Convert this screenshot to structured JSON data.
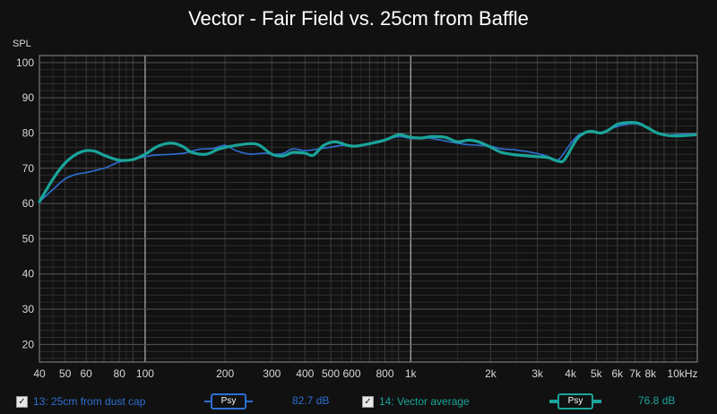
{
  "title": "Vector - Fair Field vs. 25cm from Baffle",
  "chart_data": {
    "type": "line",
    "title": "Vector - Fair Field vs. 25cm from Baffle",
    "ylabel": "SPL",
    "xlabel": "",
    "x_scale": "log",
    "xlim": [
      40,
      12000
    ],
    "ylim": [
      15,
      102
    ],
    "grid": true,
    "y_ticks": [
      "100",
      "90",
      "80",
      "70",
      "60",
      "50",
      "40",
      "30",
      "20"
    ],
    "y_tick_values": [
      100,
      90,
      80,
      70,
      60,
      50,
      40,
      30,
      20
    ],
    "x_ticks": [
      {
        "v": 40,
        "t": "40"
      },
      {
        "v": 50,
        "t": "50"
      },
      {
        "v": 60,
        "t": "60"
      },
      {
        "v": 80,
        "t": "80"
      },
      {
        "v": 100,
        "t": "100"
      },
      {
        "v": 200,
        "t": "200"
      },
      {
        "v": 300,
        "t": "300"
      },
      {
        "v": 400,
        "t": "400"
      },
      {
        "v": 500,
        "t": "500"
      },
      {
        "v": 600,
        "t": "600"
      },
      {
        "v": 800,
        "t": "800"
      },
      {
        "v": 1000,
        "t": "1k"
      },
      {
        "v": 2000,
        "t": "2k"
      },
      {
        "v": 3000,
        "t": "3k"
      },
      {
        "v": 4000,
        "t": "4k"
      },
      {
        "v": 5000,
        "t": "5k"
      },
      {
        "v": 6000,
        "t": "6k"
      },
      {
        "v": 7000,
        "t": "7k"
      },
      {
        "v": 8000,
        "t": "8k"
      },
      {
        "v": 10000,
        "t": "10kHz"
      }
    ],
    "series": [
      {
        "name": "13: 25cm from dust cap",
        "color": "#2d6fd2",
        "points": [
          [
            40,
            60.5
          ],
          [
            45,
            64
          ],
          [
            50,
            67
          ],
          [
            55,
            68.3
          ],
          [
            60,
            68.8
          ],
          [
            70,
            70
          ],
          [
            80,
            71.8
          ],
          [
            90,
            72.5
          ],
          [
            100,
            73.3
          ],
          [
            110,
            73.8
          ],
          [
            120,
            73.9
          ],
          [
            140,
            74.3
          ],
          [
            160,
            75.4
          ],
          [
            180,
            75.6
          ],
          [
            200,
            76.5
          ],
          [
            220,
            75
          ],
          [
            250,
            74
          ],
          [
            280,
            74.3
          ],
          [
            300,
            74
          ],
          [
            330,
            74.2
          ],
          [
            360,
            75.5
          ],
          [
            400,
            75
          ],
          [
            450,
            75.5
          ],
          [
            500,
            76
          ],
          [
            550,
            76.5
          ],
          [
            600,
            76.3
          ],
          [
            700,
            77
          ],
          [
            800,
            78
          ],
          [
            900,
            79
          ],
          [
            1000,
            78.5
          ],
          [
            1100,
            78.5
          ],
          [
            1200,
            78.5
          ],
          [
            1400,
            77.5
          ],
          [
            1600,
            76.8
          ],
          [
            1800,
            76.5
          ],
          [
            2000,
            76.3
          ],
          [
            2200,
            75.5
          ],
          [
            2500,
            75.2
          ],
          [
            3000,
            74.2
          ],
          [
            3300,
            73.3
          ],
          [
            3600,
            72.5
          ],
          [
            4000,
            77
          ],
          [
            4300,
            79.5
          ],
          [
            4700,
            80.5
          ],
          [
            5200,
            80.2
          ],
          [
            5800,
            81.5
          ],
          [
            6500,
            82.5
          ],
          [
            7200,
            82.5
          ],
          [
            8000,
            81
          ],
          [
            9000,
            79.5
          ],
          [
            10000,
            79.6
          ],
          [
            11800,
            79.8
          ]
        ]
      },
      {
        "name": "14: Vector average",
        "color": "#1aa49a",
        "points": [
          [
            40,
            60.5
          ],
          [
            45,
            67
          ],
          [
            50,
            71.5
          ],
          [
            55,
            74
          ],
          [
            60,
            75
          ],
          [
            65,
            74.8
          ],
          [
            70,
            73.7
          ],
          [
            80,
            72.3
          ],
          [
            90,
            72.5
          ],
          [
            100,
            74
          ],
          [
            110,
            76
          ],
          [
            120,
            77
          ],
          [
            130,
            77
          ],
          [
            140,
            76
          ],
          [
            150,
            74.5
          ],
          [
            170,
            74
          ],
          [
            190,
            75.5
          ],
          [
            220,
            76.5
          ],
          [
            250,
            77
          ],
          [
            270,
            76.5
          ],
          [
            300,
            74
          ],
          [
            330,
            73.5
          ],
          [
            360,
            74.5
          ],
          [
            400,
            74.3
          ],
          [
            430,
            73.7
          ],
          [
            470,
            76.5
          ],
          [
            520,
            77.5
          ],
          [
            580,
            76.5
          ],
          [
            620,
            76.3
          ],
          [
            700,
            77
          ],
          [
            800,
            78
          ],
          [
            900,
            79.5
          ],
          [
            1000,
            78.8
          ],
          [
            1100,
            78.6
          ],
          [
            1200,
            79
          ],
          [
            1350,
            78.8
          ],
          [
            1500,
            77.5
          ],
          [
            1650,
            78
          ],
          [
            1800,
            77.5
          ],
          [
            2000,
            76
          ],
          [
            2200,
            74.5
          ],
          [
            2500,
            73.8
          ],
          [
            3000,
            73.3
          ],
          [
            3300,
            73
          ],
          [
            3600,
            72
          ],
          [
            3800,
            72.5
          ],
          [
            4200,
            78
          ],
          [
            4500,
            80
          ],
          [
            4800,
            80.5
          ],
          [
            5200,
            80
          ],
          [
            5600,
            81
          ],
          [
            6000,
            82.5
          ],
          [
            6600,
            83
          ],
          [
            7200,
            82.8
          ],
          [
            7800,
            81.5
          ],
          [
            8500,
            80
          ],
          [
            9300,
            79.3
          ],
          [
            10300,
            79.2
          ],
          [
            11800,
            79.5
          ]
        ]
      }
    ]
  },
  "legend": [
    {
      "label": "13: 25cm from dust cap",
      "smoothing": "Psy",
      "level": "82.7 dB",
      "color": "#2d6fd2"
    },
    {
      "label": "14: Vector average",
      "smoothing": "Psy",
      "level": "76.8 dB",
      "color": "#1aa49a"
    }
  ],
  "checkbox_mark": "✓"
}
